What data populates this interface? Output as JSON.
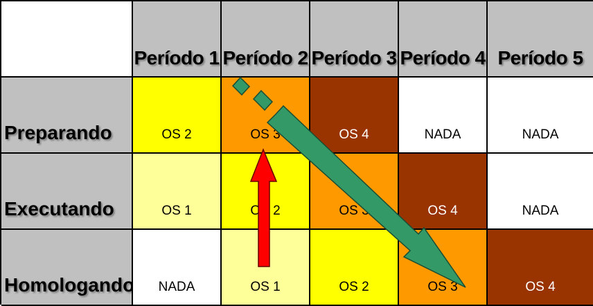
{
  "header": {
    "columns": [
      "Período 1",
      "Período 2",
      "Período 3",
      "Período 4",
      "Período 5"
    ]
  },
  "rows": [
    {
      "label": "Preparando",
      "cells": [
        {
          "text": "OS 2",
          "bg": "#ffff00",
          "fg": "#000000"
        },
        {
          "text": "OS 3",
          "bg": "#ff9900",
          "fg": "#000000"
        },
        {
          "text": "OS 4",
          "bg": "#993300",
          "fg": "#ffffff"
        },
        {
          "text": "NADA",
          "bg": "#ffffff",
          "fg": "#000000"
        },
        {
          "text": "NADA",
          "bg": "#ffffff",
          "fg": "#000000"
        }
      ]
    },
    {
      "label": "Executando",
      "cells": [
        {
          "text": "OS 1",
          "bg": "#ffff99",
          "fg": "#000000"
        },
        {
          "text": "OS 2",
          "bg": "#ffff00",
          "fg": "#000000"
        },
        {
          "text": "OS 3",
          "bg": "#ff9900",
          "fg": "#000000"
        },
        {
          "text": "OS 4",
          "bg": "#993300",
          "fg": "#ffffff"
        },
        {
          "text": "NADA",
          "bg": "#ffffff",
          "fg": "#000000"
        }
      ]
    },
    {
      "label": "Homologando",
      "cells": [
        {
          "text": "NADA",
          "bg": "#ffffff",
          "fg": "#000000"
        },
        {
          "text": "OS 1",
          "bg": "#ffff99",
          "fg": "#000000"
        },
        {
          "text": "OS 2",
          "bg": "#ffff00",
          "fg": "#000000"
        },
        {
          "text": "OS 3",
          "bg": "#ff9900",
          "fg": "#000000"
        },
        {
          "text": "OS 4",
          "bg": "#993300",
          "fg": "#ffffff"
        }
      ]
    }
  ],
  "colors": {
    "header_bg": "#c0c0c0",
    "diagonal_arrow": "#339966",
    "vertical_arrow": "#ff0000"
  }
}
